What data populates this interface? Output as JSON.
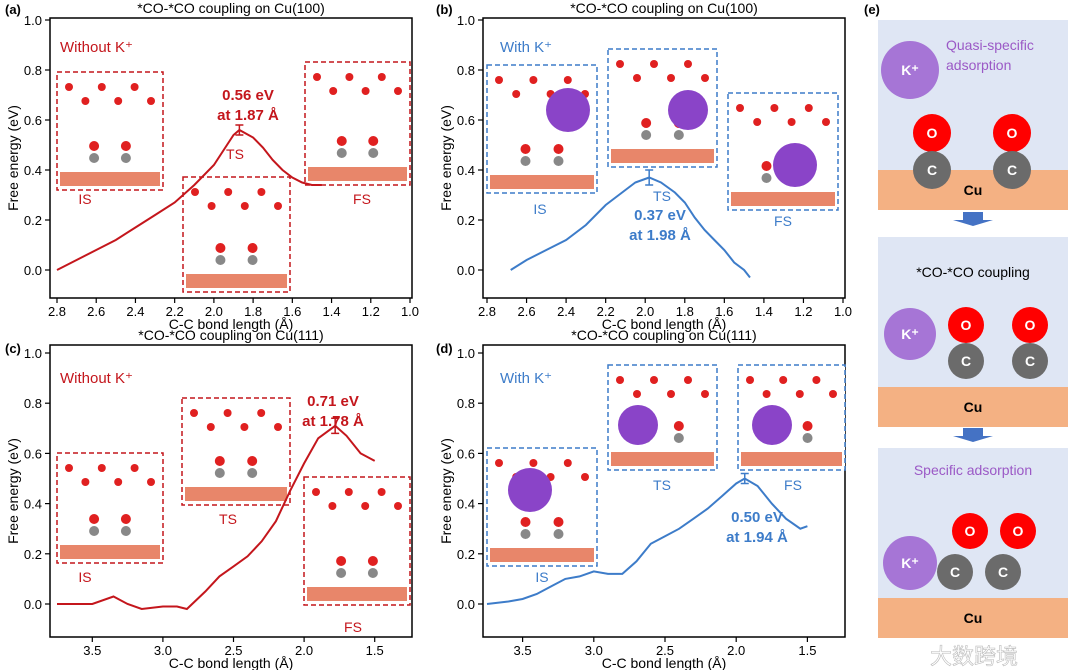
{
  "watermark": "大数跨境",
  "colors": {
    "red": "#c4161c",
    "blue": "#3d7cc9",
    "purple": "#9b59c6",
    "k_ion": "#a675d6",
    "o_atom": "#ff0000",
    "c_atom": "#6b6b6b",
    "cu": "#f4b183",
    "panel_bg": "#dfe6f4",
    "arrow": "#4472c4"
  },
  "chart_data": [
    {
      "type": "line",
      "panel": "(a)",
      "title": "*CO-*CO coupling on Cu(100)",
      "xlabel": "C-C bond length (Å)",
      "ylabel": "Free energy (eV)",
      "xlim": [
        2.8,
        1.0
      ],
      "ylim": [
        -0.1,
        1.0
      ],
      "xticks": [
        "2.8",
        "2.6",
        "2.4",
        "2.2",
        "2.0",
        "1.8",
        "1.6",
        "1.4",
        "1.2",
        "1.0"
      ],
      "yticks": [
        "0.0",
        "0.2",
        "0.4",
        "0.6",
        "0.8",
        "1.0"
      ],
      "legend": "Without K⁺",
      "color": "red",
      "x": [
        2.8,
        2.7,
        2.6,
        2.5,
        2.4,
        2.3,
        2.2,
        2.1,
        2.0,
        1.95,
        1.9,
        1.87,
        1.8,
        1.75,
        1.7,
        1.65,
        1.6,
        1.55,
        1.5,
        1.45
      ],
      "y": [
        0.0,
        0.04,
        0.08,
        0.12,
        0.17,
        0.22,
        0.27,
        0.34,
        0.42,
        0.48,
        0.54,
        0.56,
        0.53,
        0.49,
        0.44,
        0.4,
        0.37,
        0.35,
        0.34,
        0.34
      ],
      "annotation": [
        "0.56 eV",
        "at 1.87 Å"
      ],
      "errorbar": {
        "x": 1.87,
        "y": 0.56,
        "err": 0.02
      },
      "states": [
        "IS",
        "TS",
        "FS"
      ]
    },
    {
      "type": "line",
      "panel": "(b)",
      "title": "*CO-*CO coupling on Cu(100)",
      "xlabel": "C-C bond length (Å)",
      "ylabel": "Free energy (eV)",
      "xlim": [
        2.8,
        1.0
      ],
      "ylim": [
        -0.1,
        1.0
      ],
      "xticks": [
        "2.8",
        "2.6",
        "2.4",
        "2.2",
        "2.0",
        "1.8",
        "1.6",
        "1.4",
        "1.2",
        "1.0"
      ],
      "yticks": [
        "0.0",
        "0.2",
        "0.4",
        "0.6",
        "0.8",
        "1.0"
      ],
      "legend": "With K⁺",
      "color": "blue",
      "x": [
        2.68,
        2.6,
        2.5,
        2.4,
        2.3,
        2.2,
        2.1,
        2.05,
        1.98,
        1.92,
        1.85,
        1.8,
        1.75,
        1.7,
        1.65,
        1.6,
        1.55,
        1.5,
        1.47
      ],
      "y": [
        0.0,
        0.04,
        0.08,
        0.12,
        0.18,
        0.26,
        0.32,
        0.35,
        0.37,
        0.35,
        0.31,
        0.27,
        0.21,
        0.16,
        0.12,
        0.08,
        0.03,
        0.0,
        -0.03
      ],
      "annotation": [
        "0.37 eV",
        "at 1.98 Å"
      ],
      "errorbar": {
        "x": 1.98,
        "y": 0.37,
        "err": 0.03
      },
      "states": [
        "IS",
        "TS",
        "FS"
      ]
    },
    {
      "type": "line",
      "panel": "(c)",
      "title": "*CO-*CO coupling on Cu(111)",
      "xlabel": "C-C bond length (Å)",
      "ylabel": "Free energy (eV)",
      "xlim": [
        3.75,
        1.25
      ],
      "ylim": [
        -0.1,
        1.0
      ],
      "xticks": [
        "3.5",
        "3.0",
        "2.5",
        "2.0",
        "1.5"
      ],
      "yticks": [
        "0.0",
        "0.2",
        "0.4",
        "0.6",
        "0.8",
        "1.0"
      ],
      "legend": "Without K⁺",
      "color": "red",
      "x": [
        3.75,
        3.6,
        3.5,
        3.35,
        3.25,
        3.15,
        3.0,
        2.9,
        2.83,
        2.7,
        2.6,
        2.5,
        2.4,
        2.3,
        2.2,
        2.1,
        2.0,
        1.9,
        1.78,
        1.7,
        1.6,
        1.5
      ],
      "y": [
        0.0,
        0.0,
        0.0,
        0.03,
        0.0,
        -0.02,
        -0.01,
        -0.01,
        -0.02,
        0.05,
        0.11,
        0.15,
        0.19,
        0.25,
        0.33,
        0.45,
        0.56,
        0.66,
        0.71,
        0.67,
        0.6,
        0.57
      ],
      "annotation": [
        "0.71 eV",
        "at 1.78 Å"
      ],
      "errorbar": {
        "x": 1.78,
        "y": 0.71,
        "err": 0.03
      },
      "states": [
        "IS",
        "TS",
        "FS"
      ]
    },
    {
      "type": "line",
      "panel": "(d)",
      "title": "*CO-*CO coupling on Cu(111)",
      "xlabel": "C-C bond length (Å)",
      "ylabel": "Free energy (eV)",
      "xlim": [
        3.75,
        1.25
      ],
      "ylim": [
        -0.1,
        1.0
      ],
      "xticks": [
        "3.5",
        "3.0",
        "2.5",
        "2.0",
        "1.5"
      ],
      "yticks": [
        "0.0",
        "0.2",
        "0.4",
        "0.6",
        "0.8",
        "1.0"
      ],
      "legend": "With K⁺",
      "color": "blue",
      "x": [
        3.75,
        3.6,
        3.5,
        3.4,
        3.3,
        3.2,
        3.1,
        3.0,
        2.9,
        2.8,
        2.7,
        2.6,
        2.5,
        2.4,
        2.3,
        2.2,
        2.1,
        2.0,
        1.94,
        1.85,
        1.75,
        1.65,
        1.55,
        1.5
      ],
      "y": [
        0.0,
        0.01,
        0.02,
        0.04,
        0.07,
        0.1,
        0.11,
        0.13,
        0.12,
        0.12,
        0.17,
        0.24,
        0.27,
        0.3,
        0.34,
        0.38,
        0.43,
        0.48,
        0.5,
        0.47,
        0.4,
        0.34,
        0.3,
        0.31
      ],
      "annotation": [
        "0.50 eV",
        "at 1.94 Å"
      ],
      "errorbar": {
        "x": 1.94,
        "y": 0.5,
        "err": 0.02
      },
      "states": [
        "IS",
        "TS",
        "FS"
      ]
    }
  ],
  "panel_e": {
    "label": "(e)",
    "k_label": "K⁺",
    "o_label": "O",
    "c_label": "C",
    "cu_label": "Cu",
    "step1": "Quasi-specific adsorption",
    "step2": "*CO-*CO coupling",
    "step3": "Specific adsorption"
  }
}
